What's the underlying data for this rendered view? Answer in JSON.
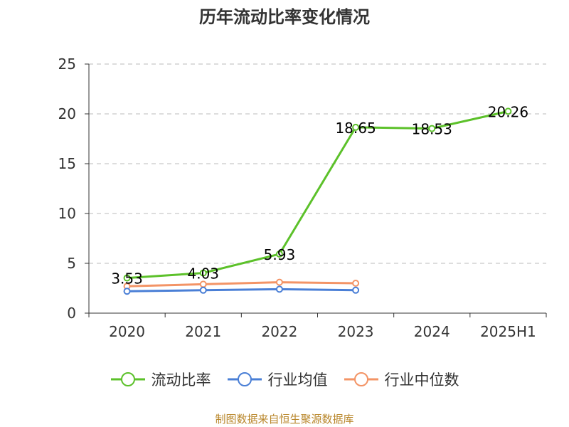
{
  "chart_data": {
    "type": "line",
    "title": "历年流动比率变化情况",
    "categories": [
      "2020",
      "2021",
      "2022",
      "2023",
      "2024",
      "2025H1"
    ],
    "ylim": [
      0,
      25
    ],
    "yticks": [
      0,
      5,
      10,
      15,
      20,
      25
    ],
    "grid": true,
    "legend_position": "bottom",
    "series": [
      {
        "name": "流动比率",
        "color": "#5cc12a",
        "values": [
          3.53,
          4.03,
          5.93,
          18.65,
          18.53,
          20.26
        ],
        "labels": [
          "3.53",
          "4.03",
          "5.93",
          "18.65",
          "18.53",
          "20.26"
        ]
      },
      {
        "name": "行业均值",
        "color": "#4a7fd6",
        "values": [
          2.2,
          2.3,
          2.4,
          2.3,
          null,
          null
        ]
      },
      {
        "name": "行业中位数",
        "color": "#f39466",
        "values": [
          2.7,
          2.9,
          3.1,
          3.0,
          null,
          null
        ]
      }
    ]
  },
  "footer": "制图数据来自恒生聚源数据库"
}
